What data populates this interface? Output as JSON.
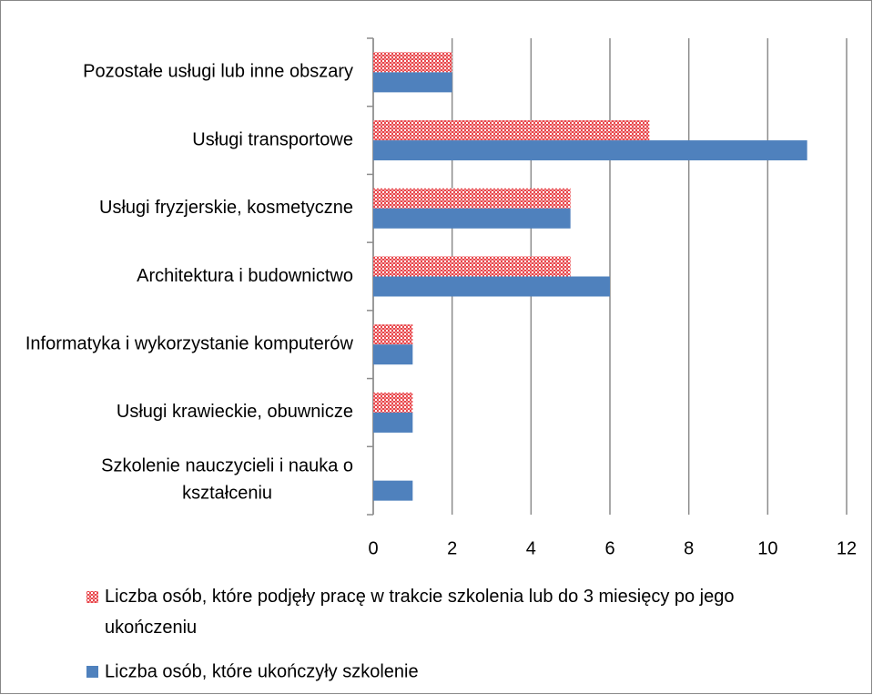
{
  "chart_data": {
    "type": "bar",
    "orientation": "horizontal",
    "categories": [
      "Pozostałe usługi lub inne obszary",
      "Usługi transportowe",
      "Usługi fryzjerskie,  kosmetyczne",
      "Architektura i budownictwo",
      "Informatyka i wykorzystanie komputerów",
      "Usługi krawieckie, obuwnicze",
      "Szkolenie nauczycieli i nauka o kształceniu"
    ],
    "series": [
      {
        "name": "Liczba osób, które podjęły pracę w trakcie szkolenia lub do 3 miesięcy po jego ukończeniu",
        "color": "#e8464b",
        "pattern": "checkered",
        "values": [
          2,
          7,
          5,
          5,
          1,
          1,
          0
        ]
      },
      {
        "name": "Liczba osób, które ukończyły szkolenie",
        "color": "#4f81bd",
        "values": [
          2,
          11,
          5,
          6,
          1,
          1,
          1
        ]
      }
    ],
    "xlim": [
      0,
      12
    ],
    "xticks": [
      0,
      2,
      4,
      6,
      8,
      10,
      12
    ],
    "grid": true,
    "legend": "bottom"
  }
}
